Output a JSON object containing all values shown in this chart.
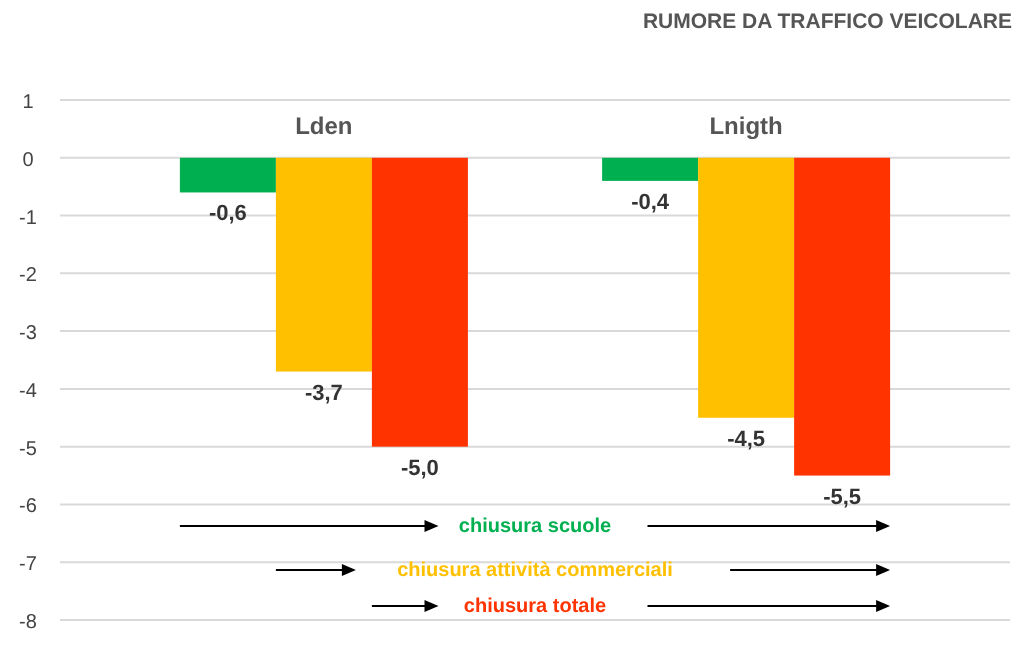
{
  "chart_data": {
    "type": "bar",
    "title": "RUMORE DA TRAFFICO VEICOLARE",
    "categories": [
      "Lden",
      "Lnigth"
    ],
    "series": [
      {
        "name": "chiusura scuole",
        "color": "#00b050",
        "values": [
          -0.6,
          -0.4
        ],
        "value_labels": [
          "-0,6",
          "-0,4"
        ]
      },
      {
        "name": "chiusura attività commerciali",
        "color": "#ffc000",
        "values": [
          -3.7,
          -4.5
        ],
        "value_labels": [
          "-3,7",
          "-4,5"
        ]
      },
      {
        "name": "chiusura totale",
        "color": "#ff3300",
        "values": [
          -5.0,
          -5.5
        ],
        "value_labels": [
          "-5,0",
          "-5,5"
        ]
      }
    ],
    "ylim": [
      -8,
      1
    ],
    "yticks": [
      1,
      0,
      -1,
      -2,
      -3,
      -4,
      -5,
      -6,
      -7,
      -8
    ],
    "grid": "y",
    "legend": "bottom"
  }
}
